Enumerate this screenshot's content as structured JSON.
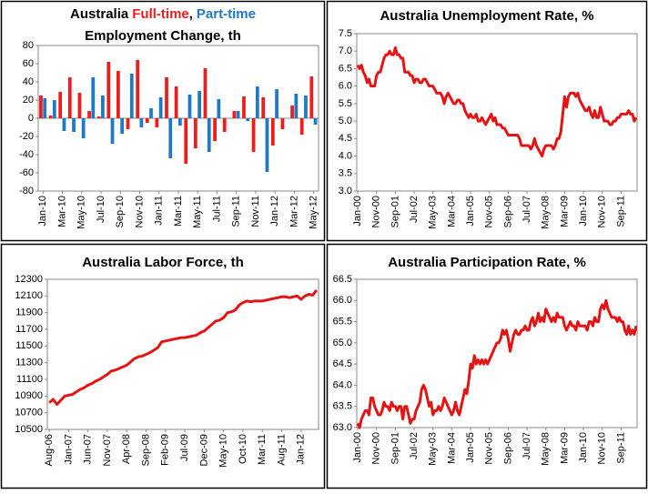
{
  "chart_data": [
    {
      "type": "bar",
      "title_lead": "Australia",
      "title_sep": ",",
      "title_line2": "Employment Change, th",
      "categories": [
        "Jan-10",
        null,
        "Mar-10",
        null,
        "May-10",
        null,
        "Jul-10",
        null,
        "Sep-10",
        null,
        "Nov-10",
        null,
        "Jan-11",
        null,
        "Mar-11",
        null,
        "May-11",
        null,
        "Jul-11",
        null,
        "Sep-11",
        null,
        "Nov-11",
        null,
        "Jan-12",
        null,
        "Mar-12",
        null,
        "May-12"
      ],
      "series": [
        {
          "name": "Full-time",
          "color": "#ee1c1c",
          "values": [
            25,
            3,
            29,
            45,
            28,
            8,
            2,
            62,
            52,
            -12,
            64,
            -5,
            -10,
            45,
            35,
            -50,
            -33,
            55,
            -25,
            -15,
            8,
            24,
            -37,
            23,
            -30,
            -12,
            14,
            -18,
            46
          ]
        },
        {
          "name": "Part-time",
          "color": "#1f78c8",
          "values": [
            22,
            20,
            -14,
            -15,
            -22,
            45,
            25,
            -28,
            -17,
            49,
            -10,
            11,
            23,
            -44,
            -8,
            26,
            30,
            -37,
            21,
            0,
            8,
            -3,
            35,
            -59,
            32,
            0,
            27,
            25,
            -7
          ]
        }
      ],
      "ylim": [
        -80,
        80
      ],
      "yticks": [
        -80,
        -60,
        -40,
        -20,
        0,
        20,
        40,
        60,
        80
      ],
      "grid": false
    },
    {
      "type": "line",
      "title": "Australia Unemployment Rate, %",
      "color": "#e41414",
      "categories": [
        "Jan-00",
        null,
        null,
        null,
        null,
        null,
        null,
        null,
        null,
        null,
        "Nov-00",
        null,
        null,
        null,
        null,
        null,
        null,
        null,
        null,
        null,
        "Sep-01",
        null,
        null,
        null,
        null,
        null,
        null,
        null,
        null,
        null,
        "Jul-02",
        null,
        null,
        null,
        null,
        null,
        null,
        null,
        null,
        null,
        "May-03",
        null,
        null,
        null,
        null,
        null,
        null,
        null,
        null,
        null,
        "Mar-04",
        null,
        null,
        null,
        null,
        null,
        null,
        null,
        null,
        null,
        "Jan-05",
        null,
        null,
        null,
        null,
        null,
        null,
        null,
        null,
        null,
        "Nov-05",
        null,
        null,
        null,
        null,
        null,
        null,
        null,
        null,
        null,
        "Sep-06",
        null,
        null,
        null,
        null,
        null,
        null,
        null,
        null,
        null,
        "Jul-07",
        null,
        null,
        null,
        null,
        null,
        null,
        null,
        null,
        null,
        "May-08",
        null,
        null,
        null,
        null,
        null,
        null,
        null,
        null,
        null,
        "Mar-09",
        null,
        null,
        null,
        null,
        null,
        null,
        null,
        null,
        null,
        "Jan-10",
        null,
        null,
        null,
        null,
        null,
        null,
        null,
        null,
        null,
        "Nov-10",
        null,
        null,
        null,
        null,
        null,
        null,
        null,
        null,
        null,
        "Sep-11",
        null,
        null,
        null,
        null,
        null,
        null,
        null,
        null
      ],
      "values": [
        6.6,
        6.5,
        6.6,
        6.4,
        6.3,
        6.1,
        6.2,
        6.0,
        6.0,
        6.0,
        6.3,
        6.4,
        6.4,
        6.6,
        6.8,
        6.9,
        6.9,
        7.0,
        6.9,
        6.9,
        7.1,
        6.9,
        6.9,
        6.8,
        6.8,
        6.4,
        6.4,
        6.4,
        6.3,
        6.3,
        6.1,
        6.2,
        6.2,
        6.1,
        6.1,
        6.2,
        6.2,
        6.1,
        6.0,
        6.0,
        6.0,
        5.9,
        5.8,
        5.8,
        5.8,
        5.7,
        5.5,
        5.7,
        5.8,
        5.7,
        5.6,
        5.5,
        5.5,
        5.6,
        5.6,
        5.5,
        5.5,
        5.3,
        5.2,
        5.1,
        5.2,
        5.1,
        5.1,
        5.2,
        5.0,
        5.0,
        5.1,
        5.0,
        4.9,
        5.0,
        5.1,
        5.2,
        5.0,
        5.1,
        4.9,
        4.9,
        4.9,
        4.8,
        4.8,
        4.7,
        4.6,
        4.6,
        4.6,
        4.6,
        4.6,
        4.6,
        4.5,
        4.3,
        4.3,
        4.3,
        4.3,
        4.3,
        4.2,
        4.3,
        4.5,
        4.3,
        4.2,
        4.1,
        4.0,
        4.2,
        4.3,
        4.3,
        4.3,
        4.3,
        4.2,
        4.3,
        4.5,
        4.5,
        4.7,
        5.2,
        5.7,
        5.4,
        5.7,
        5.8,
        5.8,
        5.8,
        5.7,
        5.8,
        5.6,
        5.5,
        5.4,
        5.3,
        5.3,
        5.4,
        5.2,
        5.1,
        5.3,
        5.1,
        5.1,
        5.4,
        5.2,
        5.0,
        5.0,
        5.0,
        4.9,
        4.9,
        5.0,
        5.0,
        5.1,
        5.1,
        5.2,
        5.2,
        5.2,
        5.2,
        5.3,
        5.2,
        5.2,
        5.0,
        5.1
      ],
      "ylim": [
        3,
        7.5
      ],
      "yticks": [
        {
          "value": 3,
          "label": "3.0"
        },
        3.5,
        {
          "value": 4,
          "label": "4.0"
        },
        4.5,
        {
          "value": 5,
          "label": "5.0"
        },
        5.5,
        {
          "value": 6,
          "label": "6.0"
        },
        6.5,
        {
          "value": 7,
          "label": "7.0"
        },
        7.5
      ],
      "grid": false
    },
    {
      "type": "line",
      "title": "Australia Labor Force, th",
      "color": "#e41414",
      "categories": [
        "Aug-06",
        null,
        null,
        null,
        null,
        "Jan-07",
        null,
        null,
        null,
        null,
        "Jun-07",
        null,
        null,
        null,
        null,
        "Nov-07",
        null,
        null,
        null,
        null,
        "Apr-08",
        null,
        null,
        null,
        null,
        "Sep-08",
        null,
        null,
        null,
        null,
        "Feb-09",
        null,
        null,
        null,
        null,
        "Jul-09",
        null,
        null,
        null,
        null,
        "Dec-09",
        null,
        null,
        null,
        null,
        "May-10",
        null,
        null,
        null,
        null,
        "Oct-10",
        null,
        null,
        null,
        null,
        "Mar-11",
        null,
        null,
        null,
        null,
        "Aug-11",
        null,
        null,
        null,
        null,
        "Jan-12",
        null,
        null,
        null,
        null
      ],
      "values": [
        10820,
        10860,
        10800,
        10850,
        10900,
        10910,
        10920,
        10950,
        10980,
        11000,
        11030,
        11050,
        11080,
        11100,
        11130,
        11160,
        11200,
        11210,
        11230,
        11250,
        11270,
        11310,
        11350,
        11370,
        11380,
        11400,
        11420,
        11450,
        11480,
        11550,
        11560,
        11570,
        11580,
        11590,
        11600,
        11600,
        11610,
        11620,
        11630,
        11660,
        11680,
        11720,
        11760,
        11800,
        11810,
        11840,
        11900,
        11910,
        11930,
        11990,
        12020,
        12040,
        12030,
        12040,
        12040,
        12040,
        12050,
        12060,
        12070,
        12080,
        12090,
        12090,
        12080,
        12090,
        12100,
        12060,
        12100,
        12120,
        12110,
        12170
      ],
      "ylim": [
        10500,
        12300
      ],
      "yticks": [
        10500,
        10700,
        10900,
        11100,
        11300,
        11500,
        11700,
        11900,
        12100,
        12300
      ],
      "grid": false
    },
    {
      "type": "line",
      "title": "Australia Participation Rate, %",
      "color": "#e41414",
      "categories": [
        "Jan-00",
        null,
        null,
        null,
        null,
        null,
        null,
        null,
        null,
        null,
        "Nov-00",
        null,
        null,
        null,
        null,
        null,
        null,
        null,
        null,
        null,
        "Sep-01",
        null,
        null,
        null,
        null,
        null,
        null,
        null,
        null,
        null,
        "Jul-02",
        null,
        null,
        null,
        null,
        null,
        null,
        null,
        null,
        null,
        "May-03",
        null,
        null,
        null,
        null,
        null,
        null,
        null,
        null,
        null,
        "Mar-04",
        null,
        null,
        null,
        null,
        null,
        null,
        null,
        null,
        null,
        "Jan-05",
        null,
        null,
        null,
        null,
        null,
        null,
        null,
        null,
        null,
        "Nov-05",
        null,
        null,
        null,
        null,
        null,
        null,
        null,
        null,
        null,
        "Sep-06",
        null,
        null,
        null,
        null,
        null,
        null,
        null,
        null,
        null,
        "Jul-07",
        null,
        null,
        null,
        null,
        null,
        null,
        null,
        null,
        null,
        "May-08",
        null,
        null,
        null,
        null,
        null,
        null,
        null,
        null,
        null,
        "Mar-09",
        null,
        null,
        null,
        null,
        null,
        null,
        null,
        null,
        null,
        "Jan-10",
        null,
        null,
        null,
        null,
        null,
        null,
        null,
        null,
        null,
        "Nov-10",
        null,
        null,
        null,
        null,
        null,
        null,
        null,
        null,
        null,
        "Sep-11",
        null,
        null,
        null,
        null,
        null,
        null,
        null,
        null
      ],
      "values": [
        63.1,
        63.0,
        63.2,
        63.3,
        63.4,
        63.4,
        63.3,
        63.7,
        63.7,
        63.5,
        63.4,
        63.3,
        63.3,
        63.4,
        63.6,
        63.5,
        63.5,
        63.4,
        63.6,
        63.5,
        63.5,
        63.4,
        63.5,
        63.5,
        63.2,
        63.5,
        63.5,
        63.3,
        63.1,
        63.2,
        63.2,
        63.4,
        63.5,
        63.6,
        63.9,
        64.0,
        63.9,
        63.7,
        63.5,
        63.6,
        63.3,
        63.4,
        63.4,
        63.5,
        63.4,
        63.5,
        63.7,
        63.6,
        63.5,
        63.4,
        63.3,
        63.4,
        63.6,
        63.4,
        63.3,
        63.5,
        63.7,
        63.9,
        63.8,
        64.1,
        64.5,
        64.4,
        64.7,
        64.5,
        64.6,
        64.5,
        64.6,
        64.5,
        64.6,
        64.5,
        64.6,
        64.7,
        64.8,
        64.9,
        65.0,
        65.0,
        65.1,
        65.3,
        65.2,
        65.3,
        65.1,
        64.8,
        65.0,
        65.2,
        65.3,
        65.2,
        65.2,
        65.3,
        65.3,
        65.4,
        65.3,
        65.3,
        65.5,
        65.6,
        65.4,
        65.5,
        65.7,
        65.5,
        65.6,
        65.5,
        65.8,
        65.7,
        65.6,
        65.5,
        65.6,
        65.5,
        65.7,
        65.6,
        65.6,
        65.6,
        65.4,
        65.3,
        65.4,
        65.5,
        65.4,
        65.4,
        65.3,
        65.5,
        65.4,
        65.4,
        65.4,
        65.4,
        65.3,
        65.5,
        65.5,
        65.4,
        65.6,
        65.5,
        65.5,
        65.8,
        65.9,
        65.8,
        66.0,
        65.8,
        65.7,
        65.6,
        65.6,
        65.6,
        65.5,
        65.6,
        65.5,
        65.5,
        65.3,
        65.2,
        65.4,
        65.2,
        65.3,
        65.2,
        65.4
      ],
      "ylim": [
        63,
        66.5
      ],
      "yticks": [
        {
          "value": 63,
          "label": "63.0"
        },
        63.5,
        {
          "value": 64,
          "label": "64.0"
        },
        64.5,
        {
          "value": 65,
          "label": "65.0"
        },
        65.5,
        {
          "value": 66,
          "label": "66.0"
        },
        66.5
      ],
      "grid": false
    }
  ]
}
